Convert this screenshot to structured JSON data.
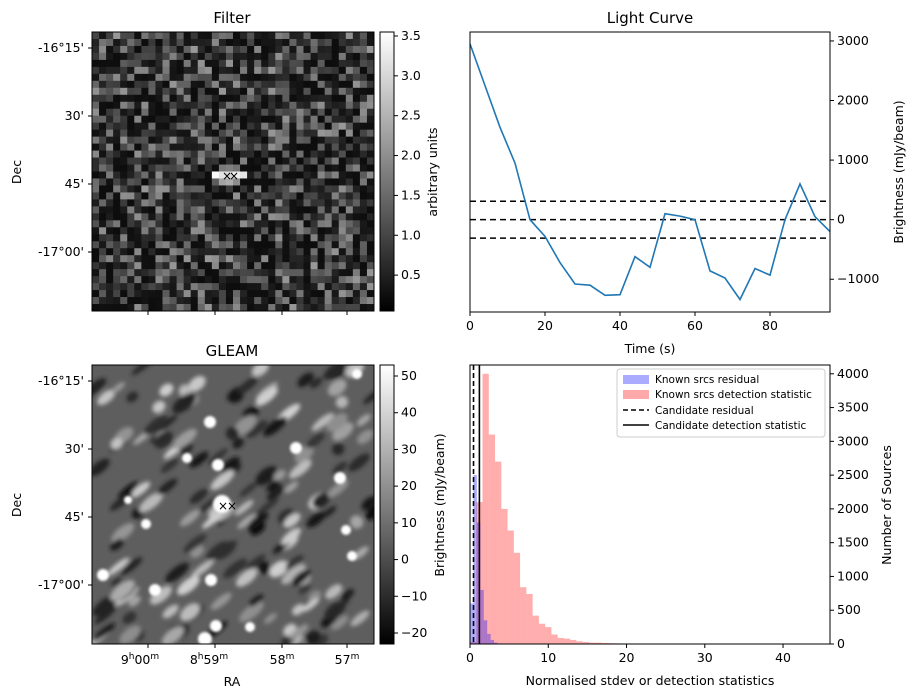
{
  "chart_data": [
    {
      "type": "heatmap",
      "title": "Filter",
      "xlabel": "",
      "ylabel": "Dec",
      "y_tick_labels": [
        "-16°15'",
        "30'",
        "45'",
        "-17°00'"
      ],
      "colorbar": {
        "label": "arbitrary units",
        "range": [
          0.05,
          3.55
        ],
        "ticks": [
          0.5,
          1.0,
          1.5,
          2.0,
          2.5,
          3.0,
          3.5
        ],
        "tick_labels": [
          "0.5",
          "1.0",
          "1.5",
          "2.0",
          "2.5",
          "3.0",
          "3.5"
        ],
        "colormap": "gray"
      },
      "markers": [
        {
          "symbol": "×",
          "color": "#0000ff"
        },
        {
          "symbol": "×",
          "color": "#ff0000"
        }
      ]
    },
    {
      "type": "line",
      "title": "Light Curve",
      "xlabel": "Time (s)",
      "ylabel": "Brightness (mJy/beam)",
      "xlim": [
        0,
        96
      ],
      "ylim": [
        -1550,
        3150
      ],
      "x_ticks": [
        0,
        20,
        40,
        60,
        80
      ],
      "x_tick_labels": [
        "0",
        "20",
        "40",
        "60",
        "80"
      ],
      "y_ticks": [
        -1000,
        0,
        1000,
        2000,
        3000
      ],
      "y_tick_labels": [
        "−1000",
        "0",
        "1000",
        "2000",
        "3000"
      ],
      "series": [
        {
          "color": "#1f77b4",
          "x": [
            0,
            4,
            8,
            12,
            16,
            20,
            24,
            28,
            32,
            36,
            40,
            44,
            48,
            52,
            56,
            60,
            64,
            68,
            72,
            76,
            80,
            84,
            88,
            92,
            96
          ],
          "y": [
            2950,
            2250,
            1550,
            950,
            0,
            -280,
            -720,
            -1080,
            -1100,
            -1270,
            -1260,
            -620,
            -800,
            100,
            60,
            0,
            -860,
            -980,
            -1340,
            -820,
            -930,
            0,
            600,
            50,
            -200
          ]
        }
      ],
      "hlines": [
        {
          "y": 310,
          "style": "dashed"
        },
        {
          "y": 0,
          "style": "dashed"
        },
        {
          "y": -310,
          "style": "dashed"
        }
      ]
    },
    {
      "type": "heatmap",
      "title": "GLEAM",
      "xlabel": "RA",
      "ylabel": "Dec",
      "x_tick_labels": [
        {
          "main": "9",
          "sup1": "h",
          "mid": "00",
          "sup2": "m"
        },
        {
          "main": "8",
          "sup1": "h",
          "mid": "59",
          "sup2": "m"
        },
        {
          "main": "58",
          "sup1": "m",
          "mid": "",
          "sup2": ""
        },
        {
          "main": "57",
          "sup1": "m",
          "mid": "",
          "sup2": ""
        }
      ],
      "y_tick_labels": [
        "-16°15'",
        "30'",
        "45'",
        "-17°00'"
      ],
      "colorbar": {
        "label": "Brightness (mJy/beam)",
        "range": [
          -23,
          53
        ],
        "ticks": [
          -20,
          -10,
          0,
          10,
          20,
          30,
          40,
          50
        ],
        "tick_labels": [
          "−20",
          "−10",
          "0",
          "10",
          "20",
          "30",
          "40",
          "50"
        ],
        "colormap": "gray"
      },
      "markers": [
        {
          "symbol": "×",
          "color": "#0000ff"
        },
        {
          "symbol": "×",
          "color": "#ff0000"
        }
      ]
    },
    {
      "type": "bar",
      "title": "",
      "xlabel": "Normalised stdev or detection statistics",
      "ylabel": "Number of Sources",
      "xlim": [
        0,
        46
      ],
      "ylim": [
        0,
        4130
      ],
      "x_ticks": [
        0,
        10,
        20,
        30,
        40
      ],
      "x_tick_labels": [
        "0",
        "10",
        "20",
        "30",
        "40"
      ],
      "y_ticks": [
        0,
        500,
        1000,
        1500,
        2000,
        2500,
        3000,
        3500,
        4000
      ],
      "y_tick_labels": [
        "0",
        "500",
        "1000",
        "1500",
        "2000",
        "2500",
        "3000",
        "3500",
        "4000"
      ],
      "bin_width": 0.8,
      "series": [
        {
          "name": "Known srcs residual",
          "color": "#aaaaff",
          "bin_start": 0,
          "values": [
            600,
            2500,
            1800,
            800,
            350,
            150,
            60,
            20,
            8,
            3
          ]
        },
        {
          "name": "Known srcs detection statistic",
          "color": "#ffaaaa",
          "bin_start": 0,
          "values": [
            30,
            2100,
            4000,
            3100,
            2700,
            2000,
            1680,
            1350,
            840,
            740,
            420,
            300,
            250,
            140,
            90,
            80,
            60,
            40,
            30,
            20,
            20,
            15,
            12,
            10,
            8,
            8,
            6,
            5,
            5,
            4,
            4,
            3,
            3,
            3,
            2,
            2,
            2,
            2,
            2,
            2,
            2,
            2,
            2,
            2,
            2,
            2,
            2,
            2,
            2,
            2,
            2,
            2,
            2,
            2,
            2,
            2
          ]
        }
      ],
      "vlines": [
        {
          "name": "Candidate residual",
          "x": 0.45,
          "style": "dashed"
        },
        {
          "name": "Candidate detection statistic",
          "x": 1.2,
          "style": "solid"
        }
      ],
      "legend_position": "top-right",
      "extra_ylabel": "Brightness (mJy/beam)"
    }
  ]
}
